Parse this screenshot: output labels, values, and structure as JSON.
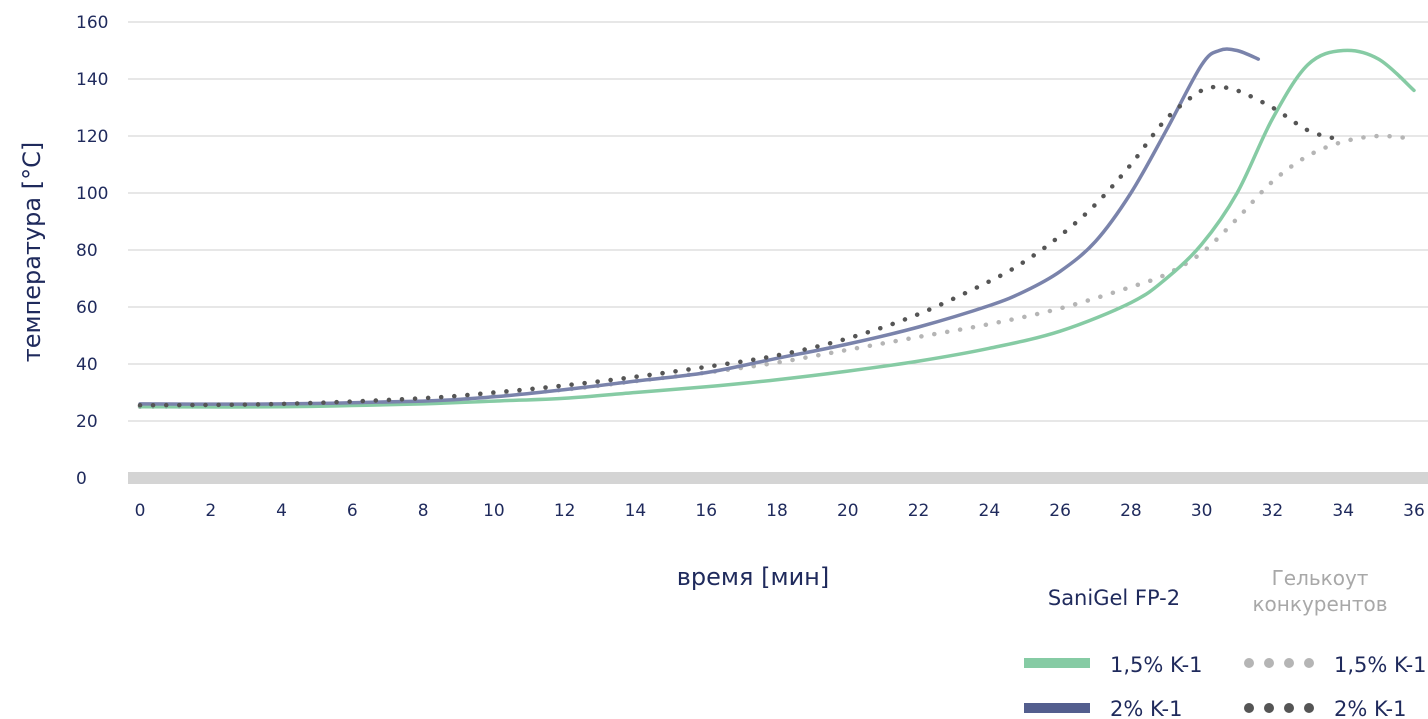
{
  "chart_data": {
    "type": "line",
    "xlabel": "время [мин]",
    "ylabel": "температура [°C]",
    "xlim": [
      0,
      36
    ],
    "ylim": [
      0,
      160
    ],
    "x_ticks": [
      0,
      2,
      4,
      6,
      8,
      10,
      12,
      14,
      16,
      18,
      20,
      22,
      24,
      26,
      28,
      30,
      32,
      34,
      36
    ],
    "y_ticks": [
      0,
      20,
      40,
      60,
      80,
      100,
      120,
      140,
      160
    ],
    "grid": "horizontal",
    "legend": {
      "placement": "bottom-right",
      "group_sanigel": "SaniGel FP-2",
      "group_competitor_line1": "Гелькоут",
      "group_competitor_line2": "конкурентов",
      "row1_sanigel": "1,5% K-1",
      "row1_competitor": "1,5% K-1",
      "row2_sanigel": "2% K-1",
      "row2_competitor": "2% K-1"
    },
    "series": [
      {
        "id": "sanigel_15",
        "style": "solid",
        "color": "#86cba4",
        "x": [
          0,
          4,
          8,
          10,
          12,
          14,
          16,
          18,
          20,
          22,
          24,
          26,
          28,
          29,
          30,
          31,
          32,
          33,
          34,
          35,
          36
        ],
        "y": [
          25,
          25,
          26,
          27,
          28,
          30,
          32,
          34.5,
          37.5,
          41,
          45.5,
          51.5,
          61.5,
          70,
          82,
          100,
          126,
          145,
          150,
          147,
          136
        ]
      },
      {
        "id": "sanigel_2",
        "style": "solid",
        "color": "#7a83ab",
        "x": [
          0,
          4,
          8,
          10,
          12,
          14,
          16,
          18,
          20,
          22,
          24,
          25,
          26,
          27,
          28,
          29,
          30,
          30.5,
          31,
          31.6
        ],
        "y": [
          26,
          26,
          27,
          28.5,
          31,
          34,
          37,
          42,
          47,
          53,
          60.5,
          65.5,
          72.5,
          83,
          100,
          122,
          145,
          150,
          150,
          147
        ]
      },
      {
        "id": "competitor_15",
        "style": "dotted",
        "color": "#b5b5b5",
        "x": [
          0,
          4,
          8,
          10,
          12,
          14,
          16,
          18,
          20,
          22,
          24,
          26,
          28,
          29,
          30,
          31,
          32,
          33,
          34,
          35,
          36
        ],
        "y": [
          25,
          25.5,
          27,
          29,
          31,
          34,
          37,
          40.5,
          45,
          49.5,
          54,
          59.5,
          67,
          71.5,
          79,
          91,
          104,
          113,
          118,
          120,
          119
        ]
      },
      {
        "id": "competitor_2",
        "style": "dotted",
        "color": "#555555",
        "x": [
          0,
          4,
          8,
          10,
          12,
          14,
          16,
          18,
          20,
          22,
          24,
          25,
          26,
          27,
          28,
          29,
          30,
          30.5,
          31,
          32,
          33,
          33.8
        ],
        "y": [
          25.5,
          26,
          28,
          30,
          32.5,
          35.5,
          39,
          43,
          49,
          57.5,
          69,
          76,
          85,
          96,
          110,
          126,
          136,
          137,
          136,
          130,
          122,
          119
        ]
      }
    ]
  }
}
